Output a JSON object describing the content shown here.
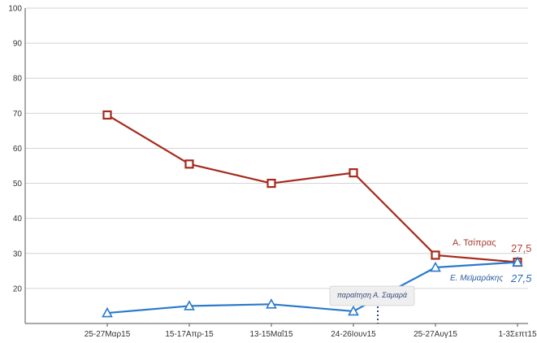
{
  "chart_data": {
    "type": "line",
    "categories": [
      "25-27Μαρ15",
      "15-17Απρ-15",
      "13-15Μαΐ15",
      "24-26Ιουν15",
      "25-27Αυγ15",
      "1-3Σεπτ15"
    ],
    "ylim": [
      10,
      100
    ],
    "yticks": [
      "20",
      "30",
      "40",
      "50",
      "60",
      "70",
      "80",
      "90",
      "100"
    ],
    "grid": true,
    "series": [
      {
        "name": "Α. Τσίπρας",
        "values": [
          69.5,
          55.5,
          50,
          53,
          29.5,
          27.5
        ],
        "color": "#a52a1c",
        "marker": "square",
        "end_label": "27,5"
      },
      {
        "name": "Ε. Μεϊμαράκης",
        "values": [
          13,
          15,
          15.5,
          13.5,
          26,
          27.5
        ],
        "color": "#2a7acc",
        "marker": "triangle",
        "end_label": "27,5"
      }
    ],
    "annotation": {
      "text": "παραίτηση Α. Σαμαρά"
    }
  }
}
